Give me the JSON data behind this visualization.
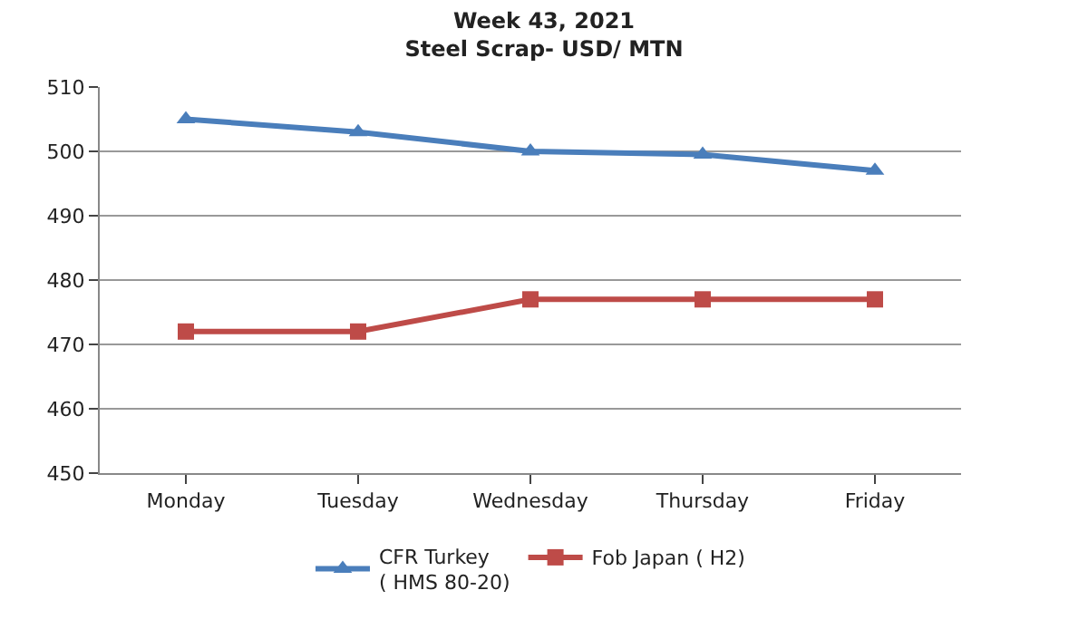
{
  "chart_data": {
    "type": "line",
    "title": "Week 43, 2021\nSteel Scrap- USD/ MTN",
    "categories": [
      "Monday",
      "Tuesday",
      "Wednesday",
      "Thursday",
      "Friday"
    ],
    "series": [
      {
        "name": "CFR Turkey\n( HMS 80-20)",
        "color": "#4a7ebb",
        "marker": "triangle",
        "values": [
          505,
          503,
          500,
          499.5,
          497
        ]
      },
      {
        "name": "Fob Japan ( H2)",
        "color": "#be4b48",
        "marker": "square",
        "values": [
          472,
          472,
          477,
          477,
          477
        ]
      }
    ],
    "ylim": [
      450,
      510
    ],
    "yticks": [
      450,
      460,
      470,
      480,
      490,
      500,
      510
    ],
    "grid": "y",
    "legend": "bottom",
    "line_style": "solid"
  }
}
